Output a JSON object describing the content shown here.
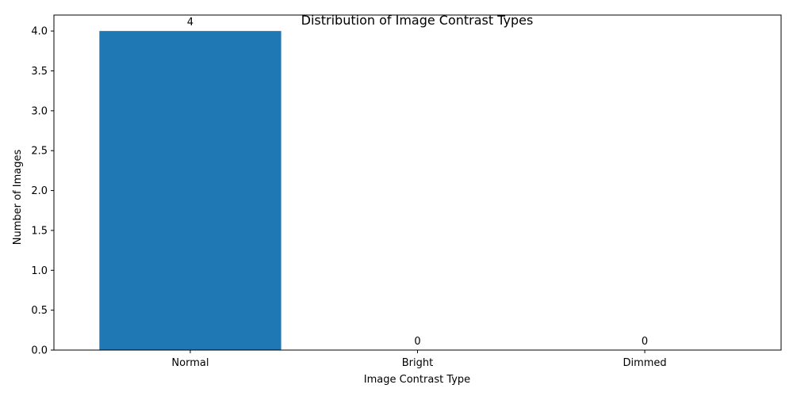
{
  "chart_data": {
    "type": "bar",
    "title": "Distribution of Image Contrast Types",
    "xlabel": "Image Contrast Type",
    "ylabel": "Number of Images",
    "categories": [
      "Normal",
      "Bright",
      "Dimmed"
    ],
    "values": [
      4,
      0,
      0
    ],
    "data_labels": [
      "4",
      "0",
      "0"
    ],
    "ylim": [
      0,
      4.2
    ],
    "yticks": [
      0.0,
      0.5,
      1.0,
      1.5,
      2.0,
      2.5,
      3.0,
      3.5,
      4.0
    ],
    "ytick_labels": [
      "0.0",
      "0.5",
      "1.0",
      "1.5",
      "2.0",
      "2.5",
      "3.0",
      "3.5",
      "4.0"
    ],
    "bar_color": "#1f77b4",
    "grid": false,
    "legend": "none"
  }
}
